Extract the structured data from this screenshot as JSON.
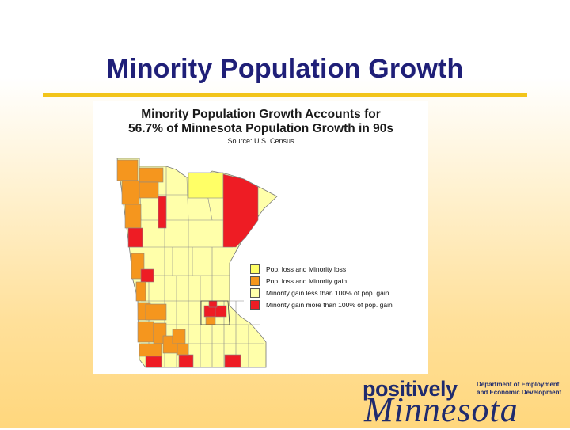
{
  "slide": {
    "title": "Minority Population Growth"
  },
  "map": {
    "heading_line1": "Minority Population Growth Accounts for",
    "heading_line2": "56.7% of Minnesota Population Growth in 90s",
    "source": "Source: U.S. Census",
    "legend": [
      {
        "label": "Pop. loss and Minority loss",
        "color": "#ffff66"
      },
      {
        "label": "Pop. loss and Minority gain",
        "color": "#f5961e"
      },
      {
        "label": "Minority gain less than 100% of pop. gain",
        "color": "#ffffaa"
      },
      {
        "label": "Minority gain more than 100% of pop. gain",
        "color": "#ee1c24"
      }
    ],
    "colors": {
      "loss_loss": "#ffff66",
      "loss_gain": "#f5961e",
      "gain_less": "#ffffaa",
      "gain_more": "#ee1c24",
      "border": "#777777"
    }
  },
  "logo": {
    "positively": "positively",
    "minnesota": "Minnesota",
    "dept_line1": "Department of Employment",
    "dept_line2": "and Economic Development"
  }
}
